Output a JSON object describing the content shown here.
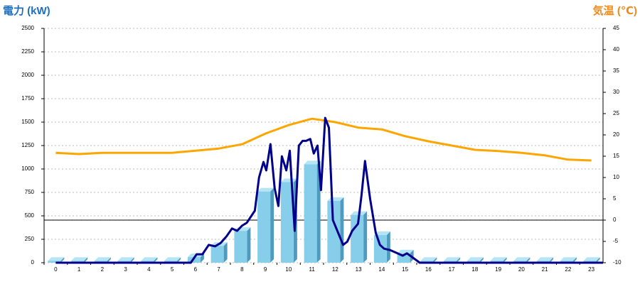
{
  "chart_data": {
    "type": "bar",
    "y_label": "電力 (kW)",
    "y2_label": "気温 (℃)",
    "categories": [
      "0",
      "1",
      "2",
      "3",
      "4",
      "5",
      "6",
      "7",
      "8",
      "9",
      "10",
      "11",
      "12",
      "13",
      "14",
      "15",
      "16",
      "17",
      "18",
      "19",
      "20",
      "21",
      "22",
      "23"
    ],
    "ylim": [
      0,
      2500
    ],
    "yticks": [
      0,
      250,
      500,
      750,
      1000,
      1250,
      1500,
      1750,
      2000,
      2250,
      2500
    ],
    "y2lim": [
      -10,
      45
    ],
    "y2ticks": [
      -10,
      -5,
      0,
      5,
      10,
      15,
      20,
      25,
      30,
      35,
      40,
      45
    ],
    "grid": true,
    "series": [
      {
        "type": "bar",
        "color": "#87ceeb",
        "values": [
          20,
          20,
          20,
          20,
          20,
          20,
          60,
          180,
          340,
          760,
          860,
          1050,
          660,
          510,
          295,
          100,
          20,
          20,
          20,
          20,
          20,
          20,
          20,
          20
        ]
      },
      {
        "type": "line",
        "color": "#ffa500",
        "axis": "y2",
        "values": [
          15.8,
          15.5,
          15.8,
          15.8,
          15.8,
          15.8,
          16.3,
          16.8,
          17.8,
          20.3,
          22.3,
          23.8,
          23,
          21.7,
          21.3,
          19.7,
          18.5,
          17.5,
          16.5,
          16.2,
          15.8,
          15.2,
          14.2,
          14
        ]
      },
      {
        "type": "line",
        "color": "#00008b",
        "x": [
          0,
          5.8,
          6.05,
          6.3,
          6.57,
          6.84,
          7.08,
          7.33,
          7.57,
          7.79,
          8,
          8.2,
          8.55,
          8.73,
          8.92,
          9.04,
          9.22,
          9.4,
          9.56,
          9.71,
          9.9,
          10.05,
          10.26,
          10.44,
          10.6,
          10.75,
          10.93,
          11.08,
          11.24,
          11.39,
          11.57,
          11.73,
          11.9,
          12.15,
          12.34,
          12.52,
          12.73,
          12.98,
          13.13,
          13.28,
          13.5,
          13.74,
          13.92,
          14.1,
          14.35,
          14.63,
          14.9,
          15.08,
          15.33,
          15.63,
          23.5
        ],
        "values": [
          0,
          0,
          90,
          90,
          190,
          175,
          210,
          280,
          365,
          340,
          395,
          425,
          555,
          910,
          1075,
          985,
          1265,
          795,
          605,
          1135,
          985,
          1195,
          340,
          1250,
          1300,
          1300,
          1320,
          1165,
          1250,
          775,
          1545,
          1440,
          455,
          305,
          190,
          225,
          340,
          415,
          720,
          1085,
          680,
          320,
          190,
          150,
          135,
          105,
          75,
          100,
          55,
          0,
          0
        ]
      }
    ]
  }
}
